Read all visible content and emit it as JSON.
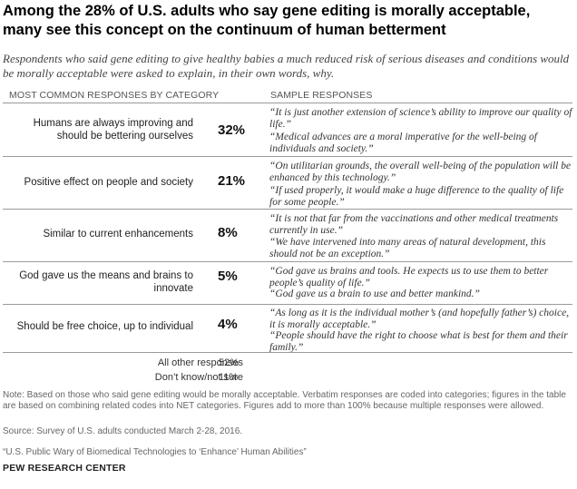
{
  "title": "Among the 28% of U.S. adults who say gene editing is morally acceptable, many see this concept on the continuum of human betterment",
  "subtitle": "Respondents who said gene editing to give healthy babies a much reduced risk of serious diseases and conditions would be morally acceptable were asked to explain, in their own words, why.",
  "headers": {
    "left": "MOST COMMON RESPONSES BY CATEGORY",
    "right": "SAMPLE RESPONSES"
  },
  "rows": [
    {
      "category": "Humans are always improving and should be bettering ourselves",
      "percent": "32%",
      "quotes": [
        "“It is just another extension of science’s ability to improve our quality of life.”",
        "“Medical advances are a moral imperative for the well-being of individuals and society.”"
      ]
    },
    {
      "category": "Positive effect on people and society",
      "percent": "21%",
      "quotes": [
        "“On utilitarian grounds, the overall well-being of the population will be enhanced by this technology.”",
        "“If used properly, it would make a huge difference to the quality of life for some people.”"
      ]
    },
    {
      "category": "Similar to current enhancements",
      "percent": "8%",
      "quotes": [
        "“It is not that far from the vaccinations and other medical treatments currently in use.”",
        "“We have intervened into many areas of natural development, this should not be an exception.”"
      ]
    },
    {
      "category": "God gave us the means and brains to innovate",
      "percent": "5%",
      "quotes": [
        "“God gave us brains and tools. He expects us to use them to better people’s quality of life.”",
        "“God gave us a brain to use and better mankind.”"
      ]
    },
    {
      "category": "Should be free choice, up to individual",
      "percent": "4%",
      "quotes": [
        "“As long as it is the individual mother’s (and hopefully father’s) choice, it is morally acceptable.”",
        "“People should have the right to choose what is best for them and their family.”"
      ]
    }
  ],
  "others": [
    {
      "label": "All other responses",
      "percent": "52%"
    },
    {
      "label": "Don’t know/not sure",
      "percent": "11%"
    }
  ],
  "note": "Note: Based on those who said gene editing would be morally acceptable. Verbatim responses are coded into categories; figures in the table are based on combining related codes into NET categories. Figures add to more than 100% because multiple responses were allowed.",
  "source": "Source: Survey of U.S. adults conducted March 2-28, 2016.",
  "report": "“U.S. Public Wary of Biomedical Technologies to ‘Enhance’ Human Abilities”",
  "brand": "PEW RESEARCH CENTER"
}
